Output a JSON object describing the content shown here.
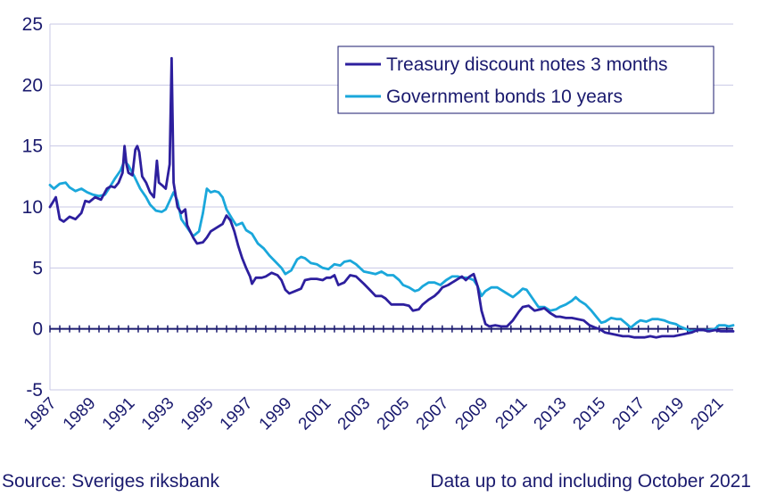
{
  "chart_data": {
    "type": "line",
    "ylim": [
      -5,
      25
    ],
    "yticks": [
      -5,
      0,
      5,
      10,
      15,
      20,
      25
    ],
    "xlim": [
      1987,
      2021.83
    ],
    "xticks": [
      "1987",
      "1989",
      "1991",
      "1993",
      "1995",
      "1997",
      "1999",
      "2001",
      "2003",
      "2005",
      "2007",
      "2009",
      "2011",
      "2013",
      "2015",
      "2017",
      "2019",
      "2021"
    ],
    "grid": "horizontal",
    "legend_position": "top-right",
    "series": [
      {
        "name": "Treasury discount notes 3 months",
        "color": "#2d1f9e",
        "points": [
          [
            1987.0,
            10.0
          ],
          [
            1987.3,
            10.8
          ],
          [
            1987.5,
            9.0
          ],
          [
            1987.7,
            8.8
          ],
          [
            1988.0,
            9.2
          ],
          [
            1988.3,
            9.0
          ],
          [
            1988.6,
            9.5
          ],
          [
            1988.8,
            10.5
          ],
          [
            1989.0,
            10.4
          ],
          [
            1989.3,
            10.8
          ],
          [
            1989.6,
            10.6
          ],
          [
            1989.9,
            11.5
          ],
          [
            1990.1,
            11.7
          ],
          [
            1990.3,
            11.6
          ],
          [
            1990.5,
            12.0
          ],
          [
            1990.7,
            12.8
          ],
          [
            1990.8,
            15.0
          ],
          [
            1990.9,
            13.5
          ],
          [
            1991.0,
            12.8
          ],
          [
            1991.2,
            12.6
          ],
          [
            1991.35,
            14.7
          ],
          [
            1991.45,
            15.0
          ],
          [
            1991.55,
            14.5
          ],
          [
            1991.7,
            12.5
          ],
          [
            1991.9,
            12.0
          ],
          [
            1992.1,
            11.2
          ],
          [
            1992.3,
            10.8
          ],
          [
            1992.45,
            13.8
          ],
          [
            1992.55,
            12.0
          ],
          [
            1992.7,
            11.8
          ],
          [
            1992.9,
            11.5
          ],
          [
            1993.0,
            12.5
          ],
          [
            1993.1,
            13.5
          ],
          [
            1993.2,
            22.2
          ],
          [
            1993.3,
            12.0
          ],
          [
            1993.5,
            10.0
          ],
          [
            1993.7,
            9.5
          ],
          [
            1993.9,
            9.8
          ],
          [
            1994.0,
            8.5
          ],
          [
            1994.3,
            7.5
          ],
          [
            1994.5,
            7.0
          ],
          [
            1994.8,
            7.1
          ],
          [
            1995.0,
            7.5
          ],
          [
            1995.2,
            8.0
          ],
          [
            1995.5,
            8.3
          ],
          [
            1995.8,
            8.6
          ],
          [
            1996.0,
            9.3
          ],
          [
            1996.2,
            8.9
          ],
          [
            1996.4,
            8.0
          ],
          [
            1996.6,
            6.8
          ],
          [
            1996.8,
            5.8
          ],
          [
            1997.0,
            5.0
          ],
          [
            1997.2,
            4.3
          ],
          [
            1997.3,
            3.7
          ],
          [
            1997.5,
            4.2
          ],
          [
            1997.8,
            4.2
          ],
          [
            1998.0,
            4.3
          ],
          [
            1998.3,
            4.6
          ],
          [
            1998.6,
            4.4
          ],
          [
            1998.8,
            4.0
          ],
          [
            1999.0,
            3.2
          ],
          [
            1999.2,
            2.9
          ],
          [
            1999.5,
            3.1
          ],
          [
            1999.8,
            3.3
          ],
          [
            2000.0,
            4.0
          ],
          [
            2000.3,
            4.1
          ],
          [
            2000.6,
            4.1
          ],
          [
            2000.9,
            4.0
          ],
          [
            2001.1,
            4.2
          ],
          [
            2001.3,
            4.2
          ],
          [
            2001.5,
            4.4
          ],
          [
            2001.7,
            3.6
          ],
          [
            2002.0,
            3.8
          ],
          [
            2002.3,
            4.4
          ],
          [
            2002.6,
            4.3
          ],
          [
            2002.8,
            4.0
          ],
          [
            2003.0,
            3.7
          ],
          [
            2003.3,
            3.2
          ],
          [
            2003.6,
            2.7
          ],
          [
            2003.9,
            2.7
          ],
          [
            2004.1,
            2.5
          ],
          [
            2004.4,
            2.0
          ],
          [
            2004.7,
            2.0
          ],
          [
            2005.0,
            2.0
          ],
          [
            2005.3,
            1.9
          ],
          [
            2005.5,
            1.5
          ],
          [
            2005.8,
            1.6
          ],
          [
            2006.0,
            2.0
          ],
          [
            2006.3,
            2.4
          ],
          [
            2006.6,
            2.7
          ],
          [
            2006.8,
            3.0
          ],
          [
            2007.0,
            3.4
          ],
          [
            2007.3,
            3.6
          ],
          [
            2007.6,
            3.9
          ],
          [
            2007.9,
            4.2
          ],
          [
            2008.0,
            4.3
          ],
          [
            2008.2,
            4.0
          ],
          [
            2008.4,
            4.3
          ],
          [
            2008.6,
            4.5
          ],
          [
            2008.8,
            3.5
          ],
          [
            2009.0,
            1.5
          ],
          [
            2009.2,
            0.4
          ],
          [
            2009.4,
            0.2
          ],
          [
            2009.7,
            0.3
          ],
          [
            2010.0,
            0.2
          ],
          [
            2010.3,
            0.2
          ],
          [
            2010.6,
            0.7
          ],
          [
            2010.9,
            1.4
          ],
          [
            2011.1,
            1.8
          ],
          [
            2011.4,
            1.9
          ],
          [
            2011.7,
            1.5
          ],
          [
            2012.0,
            1.6
          ],
          [
            2012.2,
            1.7
          ],
          [
            2012.5,
            1.3
          ],
          [
            2012.8,
            1.0
          ],
          [
            2013.0,
            1.0
          ],
          [
            2013.3,
            0.9
          ],
          [
            2013.6,
            0.9
          ],
          [
            2013.9,
            0.8
          ],
          [
            2014.2,
            0.7
          ],
          [
            2014.5,
            0.3
          ],
          [
            2014.8,
            0.1
          ],
          [
            2015.0,
            0.0
          ],
          [
            2015.3,
            -0.3
          ],
          [
            2015.6,
            -0.4
          ],
          [
            2015.9,
            -0.5
          ],
          [
            2016.2,
            -0.6
          ],
          [
            2016.5,
            -0.6
          ],
          [
            2016.8,
            -0.7
          ],
          [
            2017.0,
            -0.7
          ],
          [
            2017.3,
            -0.7
          ],
          [
            2017.6,
            -0.6
          ],
          [
            2017.9,
            -0.7
          ],
          [
            2018.2,
            -0.6
          ],
          [
            2018.5,
            -0.6
          ],
          [
            2018.8,
            -0.6
          ],
          [
            2019.1,
            -0.5
          ],
          [
            2019.4,
            -0.4
          ],
          [
            2019.7,
            -0.3
          ],
          [
            2020.0,
            -0.1
          ],
          [
            2020.3,
            -0.1
          ],
          [
            2020.6,
            -0.2
          ],
          [
            2020.9,
            -0.1
          ],
          [
            2021.2,
            -0.2
          ],
          [
            2021.5,
            -0.2
          ],
          [
            2021.83,
            -0.2
          ]
        ]
      },
      {
        "name": "Government bonds 10 years",
        "color": "#1aa7db",
        "points": [
          [
            1987.0,
            11.8
          ],
          [
            1987.2,
            11.5
          ],
          [
            1987.5,
            11.9
          ],
          [
            1987.8,
            12.0
          ],
          [
            1988.0,
            11.6
          ],
          [
            1988.3,
            11.3
          ],
          [
            1988.6,
            11.5
          ],
          [
            1988.9,
            11.2
          ],
          [
            1989.2,
            11.0
          ],
          [
            1989.5,
            10.9
          ],
          [
            1989.8,
            11.0
          ],
          [
            1990.0,
            11.5
          ],
          [
            1990.3,
            12.3
          ],
          [
            1990.6,
            13.0
          ],
          [
            1990.8,
            13.8
          ],
          [
            1991.0,
            13.4
          ],
          [
            1991.3,
            12.5
          ],
          [
            1991.6,
            11.5
          ],
          [
            1991.9,
            10.8
          ],
          [
            1992.1,
            10.2
          ],
          [
            1992.4,
            9.7
          ],
          [
            1992.7,
            9.6
          ],
          [
            1992.9,
            9.8
          ],
          [
            1993.1,
            10.5
          ],
          [
            1993.3,
            11.2
          ],
          [
            1993.5,
            10.5
          ],
          [
            1993.7,
            9.0
          ],
          [
            1994.0,
            8.3
          ],
          [
            1994.3,
            7.6
          ],
          [
            1994.6,
            8.0
          ],
          [
            1994.8,
            9.5
          ],
          [
            1995.0,
            11.5
          ],
          [
            1995.2,
            11.2
          ],
          [
            1995.4,
            11.3
          ],
          [
            1995.6,
            11.2
          ],
          [
            1995.8,
            10.8
          ],
          [
            1996.0,
            9.8
          ],
          [
            1996.3,
            9.0
          ],
          [
            1996.5,
            8.5
          ],
          [
            1996.8,
            8.7
          ],
          [
            1997.0,
            8.1
          ],
          [
            1997.3,
            7.8
          ],
          [
            1997.6,
            7.0
          ],
          [
            1997.9,
            6.6
          ],
          [
            1998.2,
            6.0
          ],
          [
            1998.5,
            5.5
          ],
          [
            1998.8,
            5.0
          ],
          [
            1999.0,
            4.5
          ],
          [
            1999.3,
            4.8
          ],
          [
            1999.6,
            5.7
          ],
          [
            1999.8,
            5.9
          ],
          [
            2000.0,
            5.8
          ],
          [
            2000.3,
            5.4
          ],
          [
            2000.6,
            5.3
          ],
          [
            2000.9,
            5.0
          ],
          [
            2001.2,
            4.9
          ],
          [
            2001.5,
            5.3
          ],
          [
            2001.8,
            5.2
          ],
          [
            2002.0,
            5.5
          ],
          [
            2002.3,
            5.6
          ],
          [
            2002.6,
            5.3
          ],
          [
            2002.8,
            5.0
          ],
          [
            2003.0,
            4.7
          ],
          [
            2003.3,
            4.6
          ],
          [
            2003.6,
            4.5
          ],
          [
            2003.9,
            4.7
          ],
          [
            2004.2,
            4.4
          ],
          [
            2004.5,
            4.4
          ],
          [
            2004.8,
            4.0
          ],
          [
            2005.0,
            3.6
          ],
          [
            2005.3,
            3.4
          ],
          [
            2005.6,
            3.1
          ],
          [
            2005.8,
            3.2
          ],
          [
            2006.0,
            3.5
          ],
          [
            2006.3,
            3.8
          ],
          [
            2006.6,
            3.8
          ],
          [
            2006.9,
            3.6
          ],
          [
            2007.2,
            4.0
          ],
          [
            2007.5,
            4.3
          ],
          [
            2007.8,
            4.3
          ],
          [
            2008.0,
            4.2
          ],
          [
            2008.3,
            4.2
          ],
          [
            2008.6,
            4.0
          ],
          [
            2008.8,
            3.5
          ],
          [
            2009.0,
            2.7
          ],
          [
            2009.2,
            3.1
          ],
          [
            2009.5,
            3.4
          ],
          [
            2009.8,
            3.4
          ],
          [
            2010.0,
            3.2
          ],
          [
            2010.3,
            2.9
          ],
          [
            2010.6,
            2.6
          ],
          [
            2010.9,
            3.0
          ],
          [
            2011.1,
            3.3
          ],
          [
            2011.3,
            3.2
          ],
          [
            2011.6,
            2.5
          ],
          [
            2011.9,
            1.8
          ],
          [
            2012.2,
            1.8
          ],
          [
            2012.5,
            1.5
          ],
          [
            2012.8,
            1.6
          ],
          [
            2013.0,
            1.8
          ],
          [
            2013.3,
            2.0
          ],
          [
            2013.6,
            2.3
          ],
          [
            2013.8,
            2.6
          ],
          [
            2014.0,
            2.3
          ],
          [
            2014.3,
            2.0
          ],
          [
            2014.6,
            1.5
          ],
          [
            2014.9,
            0.9
          ],
          [
            2015.1,
            0.5
          ],
          [
            2015.3,
            0.6
          ],
          [
            2015.6,
            0.9
          ],
          [
            2015.9,
            0.8
          ],
          [
            2016.1,
            0.8
          ],
          [
            2016.4,
            0.4
          ],
          [
            2016.6,
            0.1
          ],
          [
            2016.9,
            0.5
          ],
          [
            2017.1,
            0.7
          ],
          [
            2017.4,
            0.6
          ],
          [
            2017.7,
            0.8
          ],
          [
            2018.0,
            0.8
          ],
          [
            2018.3,
            0.7
          ],
          [
            2018.6,
            0.5
          ],
          [
            2018.9,
            0.4
          ],
          [
            2019.1,
            0.2
          ],
          [
            2019.4,
            0.0
          ],
          [
            2019.7,
            -0.2
          ],
          [
            2020.0,
            -0.1
          ],
          [
            2020.3,
            -0.1
          ],
          [
            2020.6,
            -0.1
          ],
          [
            2020.9,
            0.0
          ],
          [
            2021.1,
            0.3
          ],
          [
            2021.4,
            0.3
          ],
          [
            2021.6,
            0.2
          ],
          [
            2021.83,
            0.3
          ]
        ]
      }
    ]
  },
  "footer": {
    "source": "Source: Sveriges riksbank",
    "note": "Data up to and including October 2021"
  }
}
